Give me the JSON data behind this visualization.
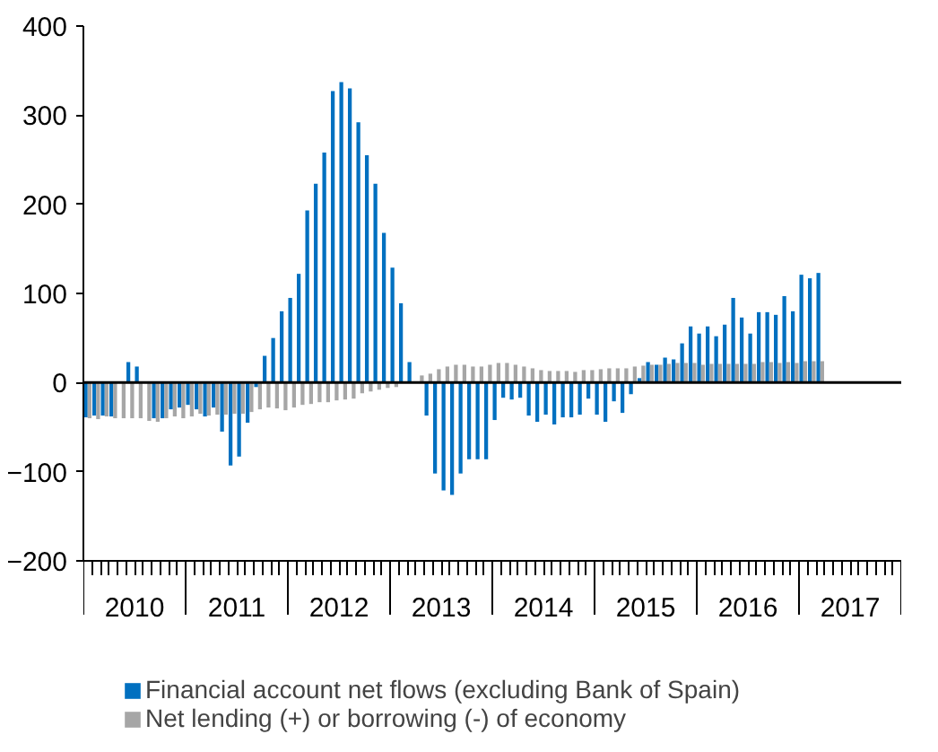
{
  "chart_data": {
    "type": "bar",
    "x": [
      "2010-01",
      "2010-02",
      "2010-03",
      "2010-04",
      "2010-05",
      "2010-06",
      "2010-07",
      "2010-08",
      "2010-09",
      "2010-10",
      "2010-11",
      "2010-12",
      "2011-01",
      "2011-02",
      "2011-03",
      "2011-04",
      "2011-05",
      "2011-06",
      "2011-07",
      "2011-08",
      "2011-09",
      "2011-10",
      "2011-11",
      "2011-12",
      "2012-01",
      "2012-02",
      "2012-03",
      "2012-04",
      "2012-05",
      "2012-06",
      "2012-07",
      "2012-08",
      "2012-09",
      "2012-10",
      "2012-11",
      "2012-12",
      "2013-01",
      "2013-02",
      "2013-03",
      "2013-04",
      "2013-05",
      "2013-06",
      "2013-07",
      "2013-08",
      "2013-09",
      "2013-10",
      "2013-11",
      "2013-12",
      "2014-01",
      "2014-02",
      "2014-03",
      "2014-04",
      "2014-05",
      "2014-06",
      "2014-07",
      "2014-08",
      "2014-09",
      "2014-10",
      "2014-11",
      "2014-12",
      "2015-01",
      "2015-02",
      "2015-03",
      "2015-04",
      "2015-05",
      "2015-06",
      "2015-07",
      "2015-08",
      "2015-09",
      "2015-10",
      "2015-11",
      "2015-12",
      "2016-01",
      "2016-02",
      "2016-03",
      "2016-04",
      "2016-05",
      "2016-06",
      "2016-07",
      "2016-08",
      "2016-09",
      "2016-10",
      "2016-11",
      "2016-12",
      "2017-01",
      "2017-02",
      "2017-03"
    ],
    "series": [
      {
        "name": "Financial account net flows (excluding Bank of Spain)",
        "color": "#0070c0",
        "values": [
          -39,
          -37,
          -37,
          -38,
          null,
          23,
          18,
          null,
          -40,
          -40,
          -30,
          -28,
          -25,
          -30,
          -38,
          -28,
          -55,
          -93,
          -83,
          -45,
          -5,
          30,
          50,
          80,
          95,
          122,
          193,
          223,
          258,
          327,
          337,
          330,
          292,
          255,
          223,
          168,
          129,
          89,
          23,
          null,
          -37,
          -102,
          -121,
          -126,
          -102,
          -86,
          -86,
          -86,
          -42,
          -17,
          -19,
          -17,
          -37,
          -44,
          -36,
          -47,
          -39,
          -39,
          -36,
          -18,
          -36,
          -44,
          -21,
          -34,
          -13,
          5,
          23,
          20,
          28,
          26,
          44,
          63,
          55,
          63,
          52,
          65,
          95,
          73,
          55,
          79,
          79,
          76,
          97,
          80,
          121,
          117,
          123
        ]
      },
      {
        "name": "Net lending (+) or borrowing (-) of economy",
        "color": "#a6a6a6",
        "values": [
          -40,
          -41,
          -38,
          -40,
          -40,
          -40,
          -40,
          -43,
          -44,
          -40,
          -38,
          -40,
          -38,
          -35,
          -37,
          -36,
          -36,
          -35,
          -35,
          -33,
          -30,
          -28,
          -29,
          -31,
          -28,
          -25,
          -24,
          -22,
          -22,
          -20,
          -19,
          -18,
          -12,
          -10,
          -8,
          -6,
          -5,
          null,
          null,
          8,
          10,
          15,
          18,
          20,
          20,
          18,
          18,
          20,
          22,
          22,
          20,
          18,
          16,
          14,
          13,
          13,
          13,
          12,
          14,
          14,
          15,
          16,
          16,
          16,
          18,
          19,
          20,
          20,
          21,
          22,
          22,
          22,
          20,
          21,
          21,
          21,
          21,
          21,
          21,
          23,
          23,
          22,
          23,
          22,
          24,
          24,
          24
        ]
      }
    ],
    "xlim": [
      "2010-01",
      "2018-01"
    ],
    "xticks": [
      {
        "value": "2010-07",
        "label": "2010"
      },
      {
        "value": "2011-07",
        "label": "2011"
      },
      {
        "value": "2012-07",
        "label": "2012"
      },
      {
        "value": "2013-07",
        "label": "2013"
      },
      {
        "value": "2014-07",
        "label": "2014"
      },
      {
        "value": "2015-07",
        "label": "2015"
      },
      {
        "value": "2016-07",
        "label": "2016"
      },
      {
        "value": "2017-07",
        "label": "2017"
      }
    ],
    "ylim": [
      -200,
      400
    ],
    "yticks": [
      -200,
      -100,
      0,
      100,
      200,
      300,
      400
    ],
    "ref_lines": [
      {
        "axis": "y",
        "value": 0,
        "color": "#000000"
      }
    ],
    "grid": false,
    "legend": "bottom"
  }
}
